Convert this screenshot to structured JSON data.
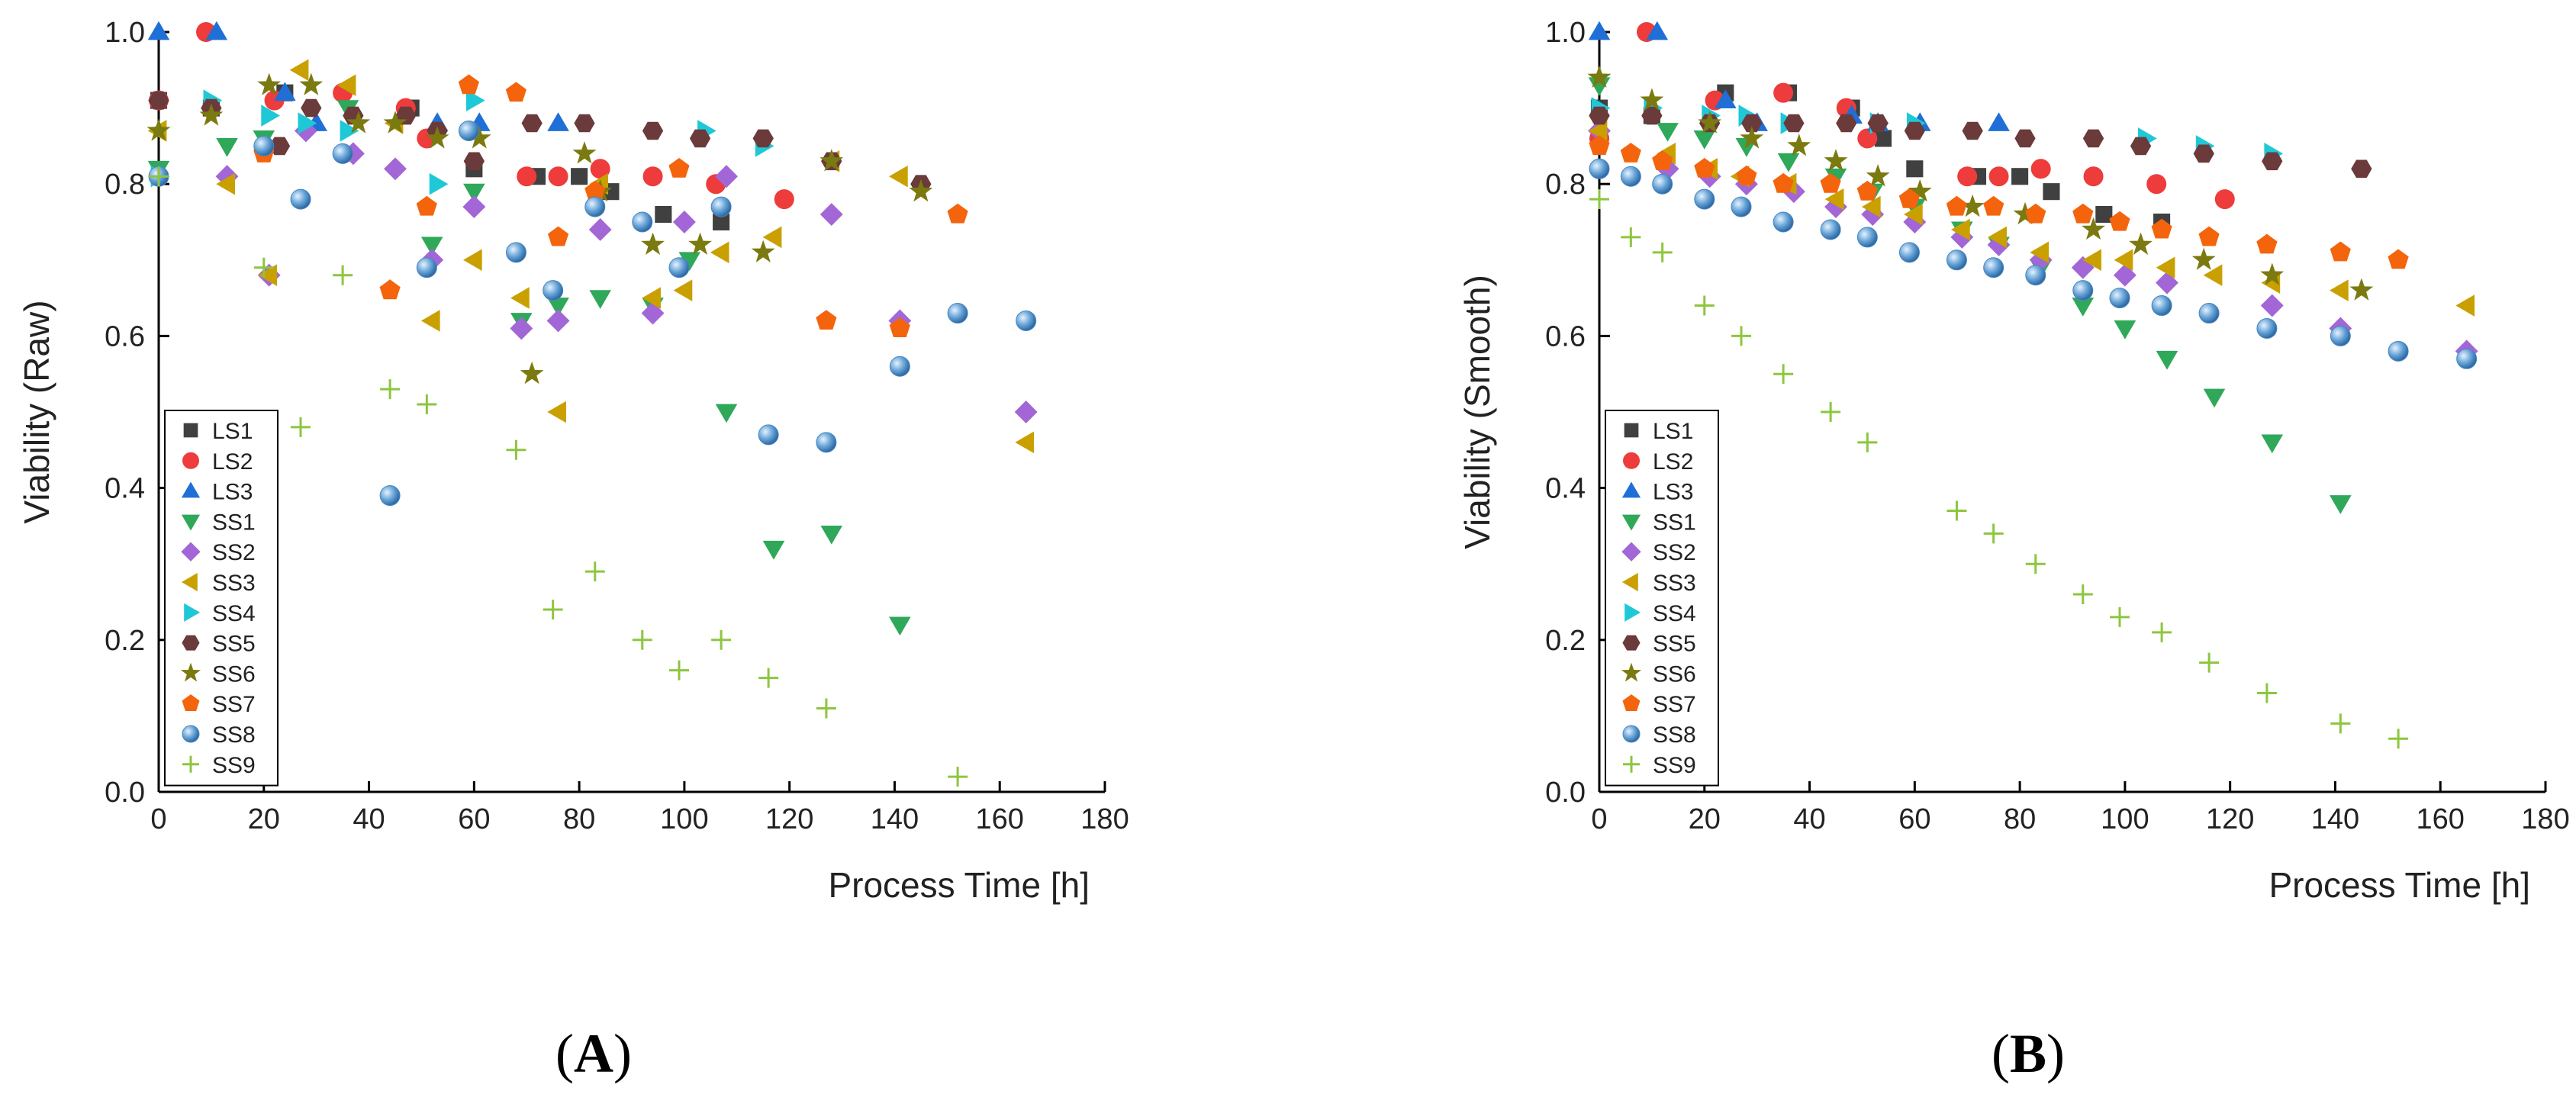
{
  "panels": {
    "a": {
      "label_open": "(",
      "label_letter": "A",
      "label_close": ")"
    },
    "b": {
      "label_open": "(",
      "label_letter": "B",
      "label_close": ")"
    }
  },
  "series_styles": [
    {
      "name": "LS1",
      "color": "#404040",
      "marker": "square"
    },
    {
      "name": "LS2",
      "color": "#ee3b3b",
      "marker": "circle"
    },
    {
      "name": "LS3",
      "color": "#1f6fd6",
      "marker": "triangle-up"
    },
    {
      "name": "SS1",
      "color": "#2fa85a",
      "marker": "triangle-down"
    },
    {
      "name": "SS2",
      "color": "#a366d6",
      "marker": "diamond"
    },
    {
      "name": "SS3",
      "color": "#c9a000",
      "marker": "triangle-left"
    },
    {
      "name": "SS4",
      "color": "#1fc8d6",
      "marker": "triangle-right"
    },
    {
      "name": "SS5",
      "color": "#6b3a3a",
      "marker": "hexagon"
    },
    {
      "name": "SS6",
      "color": "#7a7a10",
      "marker": "star"
    },
    {
      "name": "SS7",
      "color": "#f4640c",
      "marker": "pentagon"
    },
    {
      "name": "SS8",
      "color": "#6aa6d8",
      "marker": "sphere"
    },
    {
      "name": "SS9",
      "color": "#8cc63f",
      "marker": "plus"
    }
  ],
  "chart_data": [
    {
      "type": "scatter",
      "title": "",
      "xlabel": "Process Time [h]",
      "ylabel": "Viability (Raw)",
      "xlim": [
        0,
        180
      ],
      "ylim": [
        0,
        1.0
      ],
      "xticks": [
        0,
        20,
        40,
        60,
        80,
        100,
        120,
        140,
        160,
        180
      ],
      "yticks": [
        0.0,
        0.2,
        0.4,
        0.6,
        0.8,
        1.0
      ],
      "xtick_labels": [
        "0",
        "20",
        "40",
        "60",
        "80",
        "100",
        "120",
        "140",
        "160",
        "180"
      ],
      "ytick_labels": [
        "0.0",
        "0.2",
        "0.4",
        "0.6",
        "0.8",
        "1.0"
      ],
      "legend": "bottom-left",
      "series": [
        {
          "name": "LS1",
          "x": [
            0,
            10,
            24,
            48,
            60,
            72,
            80,
            86,
            96,
            107
          ],
          "y": [
            0.91,
            0.9,
            0.92,
            0.9,
            0.82,
            0.81,
            0.81,
            0.79,
            0.76,
            0.75
          ]
        },
        {
          "name": "LS2",
          "x": [
            0,
            9,
            22,
            35,
            47,
            51,
            70,
            76,
            84,
            94,
            106,
            119
          ],
          "y": [
            0.91,
            1.0,
            0.91,
            0.92,
            0.9,
            0.86,
            0.81,
            0.81,
            0.82,
            0.81,
            0.8,
            0.78
          ]
        },
        {
          "name": "LS3",
          "x": [
            0,
            11,
            24,
            30,
            53,
            61,
            76
          ],
          "y": [
            1.0,
            1.0,
            0.92,
            0.88,
            0.88,
            0.88,
            0.88
          ]
        },
        {
          "name": "SS1",
          "x": [
            0,
            13,
            20,
            36,
            52,
            60,
            69,
            76,
            84,
            94,
            101,
            108,
            117,
            128,
            141
          ],
          "y": [
            0.82,
            0.85,
            0.86,
            0.9,
            0.72,
            0.79,
            0.62,
            0.64,
            0.65,
            0.64,
            0.7,
            0.5,
            0.32,
            0.34,
            0.22
          ]
        },
        {
          "name": "SS2",
          "x": [
            13,
            21,
            28,
            37,
            45,
            52,
            60,
            69,
            76,
            84,
            94,
            100,
            108,
            128,
            141,
            165
          ],
          "y": [
            0.81,
            0.68,
            0.87,
            0.84,
            0.82,
            0.7,
            0.77,
            0.61,
            0.62,
            0.74,
            0.63,
            0.75,
            0.81,
            0.76,
            0.62,
            0.5
          ]
        },
        {
          "name": "SS3",
          "x": [
            0,
            13,
            21,
            27,
            36,
            45,
            52,
            60,
            69,
            76,
            84,
            94,
            100,
            107,
            117,
            128,
            141,
            165
          ],
          "y": [
            0.87,
            0.8,
            0.68,
            0.95,
            0.93,
            0.88,
            0.62,
            0.7,
            0.65,
            0.5,
            0.8,
            0.65,
            0.66,
            0.71,
            0.73,
            0.83,
            0.81,
            0.46
          ]
        },
        {
          "name": "SS4",
          "x": [
            0,
            10,
            21,
            28,
            36,
            53,
            60,
            104,
            115
          ],
          "y": [
            0.81,
            0.91,
            0.89,
            0.88,
            0.87,
            0.8,
            0.91,
            0.87,
            0.85
          ]
        },
        {
          "name": "SS5",
          "x": [
            0,
            10,
            23,
            29,
            37,
            47,
            53,
            60,
            71,
            81,
            94,
            103,
            115,
            128,
            145
          ],
          "y": [
            0.91,
            0.9,
            0.85,
            0.9,
            0.89,
            0.89,
            0.87,
            0.83,
            0.88,
            0.88,
            0.87,
            0.86,
            0.86,
            0.83,
            0.8
          ]
        },
        {
          "name": "SS6",
          "x": [
            0,
            10,
            21,
            29,
            38,
            45,
            53,
            61,
            71,
            81,
            84,
            94,
            103,
            115,
            128,
            145
          ],
          "y": [
            0.87,
            0.89,
            0.93,
            0.93,
            0.88,
            0.88,
            0.86,
            0.86,
            0.55,
            0.84,
            0.79,
            0.72,
            0.72,
            0.71,
            0.83,
            0.79
          ]
        },
        {
          "name": "SS7",
          "x": [
            20,
            44,
            51,
            59,
            68,
            76,
            83,
            99,
            127,
            141,
            152
          ],
          "y": [
            0.84,
            0.66,
            0.77,
            0.93,
            0.92,
            0.73,
            0.79,
            0.82,
            0.62,
            0.61,
            0.76
          ]
        },
        {
          "name": "SS8",
          "x": [
            0,
            20,
            27,
            35,
            44,
            51,
            59,
            68,
            75,
            83,
            92,
            99,
            107,
            116,
            127,
            141,
            152,
            165
          ],
          "y": [
            0.81,
            0.85,
            0.78,
            0.84,
            0.39,
            0.69,
            0.87,
            0.71,
            0.66,
            0.77,
            0.75,
            0.69,
            0.77,
            0.47,
            0.46,
            0.56,
            0.63,
            0.62
          ]
        },
        {
          "name": "SS9",
          "x": [
            0,
            20,
            27,
            35,
            44,
            51,
            68,
            75,
            83,
            92,
            99,
            107,
            116,
            127,
            152
          ],
          "y": [
            0.81,
            0.69,
            0.48,
            0.68,
            0.53,
            0.51,
            0.45,
            0.24,
            0.29,
            0.2,
            0.16,
            0.2,
            0.15,
            0.11,
            0.02
          ]
        }
      ]
    },
    {
      "type": "scatter",
      "title": "",
      "xlabel": "Process Time [h]",
      "ylabel": "Viability (Smooth)",
      "xlim": [
        0,
        180
      ],
      "ylim": [
        0,
        1.0
      ],
      "xticks": [
        0,
        20,
        40,
        60,
        80,
        100,
        120,
        140,
        160,
        180
      ],
      "yticks": [
        0.0,
        0.2,
        0.4,
        0.6,
        0.8,
        1.0
      ],
      "xtick_labels": [
        "0",
        "20",
        "40",
        "60",
        "80",
        "100",
        "120",
        "140",
        "160",
        "180"
      ],
      "ytick_labels": [
        "0.0",
        "0.2",
        "0.4",
        "0.6",
        "0.8",
        "1.0"
      ],
      "legend": "bottom-left",
      "series": [
        {
          "name": "LS1",
          "x": [
            0,
            10,
            24,
            36,
            48,
            54,
            60,
            72,
            80,
            86,
            96,
            107
          ],
          "y": [
            0.9,
            0.89,
            0.92,
            0.92,
            0.9,
            0.86,
            0.82,
            0.81,
            0.81,
            0.79,
            0.76,
            0.75
          ]
        },
        {
          "name": "LS2",
          "x": [
            0,
            9,
            22,
            35,
            47,
            51,
            70,
            76,
            84,
            94,
            106,
            119
          ],
          "y": [
            0.86,
            1.0,
            0.91,
            0.92,
            0.9,
            0.86,
            0.81,
            0.81,
            0.82,
            0.81,
            0.8,
            0.78
          ]
        },
        {
          "name": "LS3",
          "x": [
            0,
            11,
            24,
            30,
            48,
            53,
            61,
            76
          ],
          "y": [
            1.0,
            1.0,
            0.91,
            0.88,
            0.89,
            0.88,
            0.88,
            0.88
          ]
        },
        {
          "name": "SS1",
          "x": [
            0,
            13,
            20,
            28,
            36,
            45,
            52,
            60,
            69,
            76,
            84,
            92,
            100,
            108,
            117,
            128,
            141
          ],
          "y": [
            0.93,
            0.87,
            0.86,
            0.85,
            0.83,
            0.81,
            0.79,
            0.77,
            0.74,
            0.72,
            0.69,
            0.64,
            0.61,
            0.57,
            0.52,
            0.46,
            0.38
          ]
        },
        {
          "name": "SS2",
          "x": [
            0,
            13,
            21,
            28,
            37,
            45,
            52,
            60,
            69,
            76,
            84,
            92,
            100,
            108,
            128,
            141,
            165
          ],
          "y": [
            0.87,
            0.82,
            0.81,
            0.8,
            0.79,
            0.77,
            0.76,
            0.75,
            0.73,
            0.72,
            0.7,
            0.69,
            0.68,
            0.67,
            0.64,
            0.61,
            0.58
          ]
        },
        {
          "name": "SS3",
          "x": [
            0,
            13,
            21,
            27,
            36,
            45,
            52,
            60,
            69,
            76,
            84,
            94,
            100,
            108,
            117,
            128,
            141,
            165
          ],
          "y": [
            0.87,
            0.84,
            0.82,
            0.81,
            0.8,
            0.78,
            0.77,
            0.76,
            0.74,
            0.73,
            0.71,
            0.7,
            0.7,
            0.69,
            0.68,
            0.67,
            0.66,
            0.64
          ]
        },
        {
          "name": "SS4",
          "x": [
            0,
            10,
            21,
            28,
            36,
            53,
            60,
            104,
            115,
            128
          ],
          "y": [
            0.9,
            0.9,
            0.89,
            0.89,
            0.88,
            0.88,
            0.88,
            0.86,
            0.85,
            0.84
          ]
        },
        {
          "name": "SS5",
          "x": [
            0,
            10,
            21,
            29,
            37,
            47,
            53,
            60,
            71,
            81,
            94,
            103,
            115,
            128,
            145
          ],
          "y": [
            0.89,
            0.89,
            0.88,
            0.88,
            0.88,
            0.88,
            0.88,
            0.87,
            0.87,
            0.86,
            0.86,
            0.85,
            0.84,
            0.83,
            0.82
          ]
        },
        {
          "name": "SS6",
          "x": [
            0,
            10,
            21,
            29,
            38,
            45,
            53,
            61,
            71,
            81,
            94,
            103,
            115,
            128,
            145
          ],
          "y": [
            0.94,
            0.91,
            0.88,
            0.86,
            0.85,
            0.83,
            0.81,
            0.79,
            0.77,
            0.76,
            0.74,
            0.72,
            0.7,
            0.68,
            0.66
          ]
        },
        {
          "name": "SS7",
          "x": [
            0,
            6,
            12,
            20,
            28,
            35,
            44,
            51,
            59,
            68,
            75,
            83,
            92,
            99,
            107,
            116,
            127,
            141,
            152
          ],
          "y": [
            0.85,
            0.84,
            0.83,
            0.82,
            0.81,
            0.8,
            0.8,
            0.79,
            0.78,
            0.77,
            0.77,
            0.76,
            0.76,
            0.75,
            0.74,
            0.73,
            0.72,
            0.71,
            0.7
          ]
        },
        {
          "name": "SS8",
          "x": [
            0,
            6,
            12,
            20,
            27,
            35,
            44,
            51,
            59,
            68,
            75,
            83,
            92,
            99,
            107,
            116,
            127,
            141,
            152,
            165
          ],
          "y": [
            0.82,
            0.81,
            0.8,
            0.78,
            0.77,
            0.75,
            0.74,
            0.73,
            0.71,
            0.7,
            0.69,
            0.68,
            0.66,
            0.65,
            0.64,
            0.63,
            0.61,
            0.6,
            0.58,
            0.57
          ]
        },
        {
          "name": "SS9",
          "x": [
            0,
            6,
            12,
            20,
            27,
            35,
            44,
            51,
            68,
            75,
            83,
            92,
            99,
            107,
            116,
            127,
            141,
            152
          ],
          "y": [
            0.78,
            0.73,
            0.71,
            0.64,
            0.6,
            0.55,
            0.5,
            0.46,
            0.37,
            0.34,
            0.3,
            0.26,
            0.23,
            0.21,
            0.17,
            0.13,
            0.09,
            0.07
          ]
        }
      ]
    }
  ]
}
